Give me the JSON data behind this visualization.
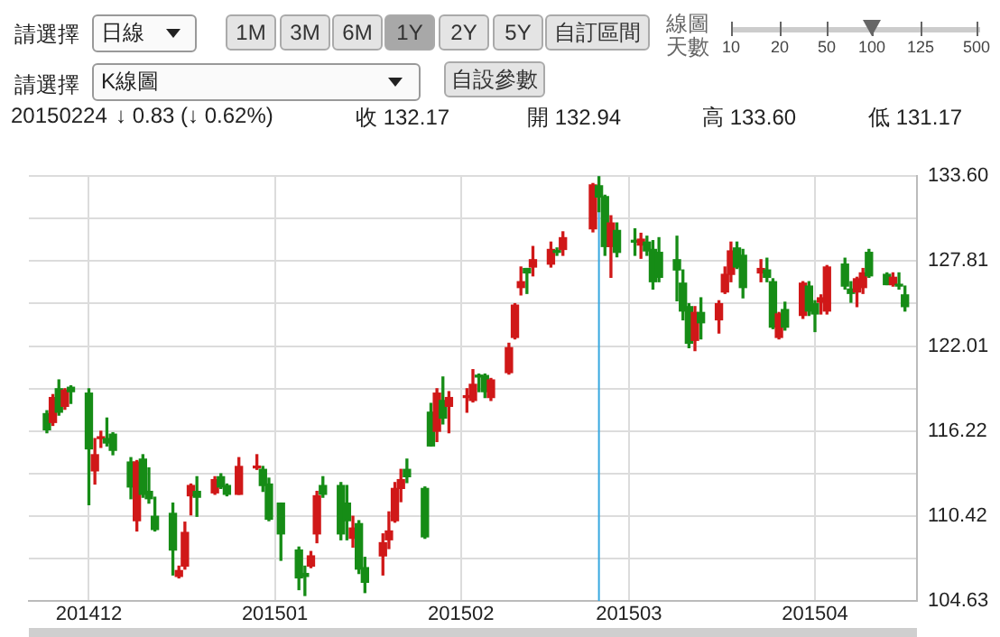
{
  "chart_data": {
    "type": "candlestick",
    "annotations": [
      "請選擇",
      "日線",
      "1M",
      "3M",
      "6M",
      "1Y",
      "2Y",
      "5Y",
      "自訂區間",
      "線圖天數",
      "10",
      "20",
      "50",
      "100",
      "125",
      "500",
      "請選擇",
      "K線圖",
      "自設參數",
      "20150224",
      "↓ 0.83 (↓ 0.62%)",
      "收 132.17",
      "開 132.94",
      "高 133.60",
      "低 131.17"
    ],
    "x": [
      "2014-11-24",
      "2014-11-25",
      "2014-11-26",
      "2014-11-27",
      "2014-11-28",
      "2014-12-01",
      "2014-12-02",
      "2014-12-03",
      "2014-12-04",
      "2014-12-05",
      "2014-12-08",
      "2014-12-09",
      "2014-12-10",
      "2014-12-11",
      "2014-12-12",
      "2014-12-15",
      "2014-12-16",
      "2014-12-17",
      "2014-12-18",
      "2014-12-19",
      "2014-12-22",
      "2014-12-23",
      "2014-12-24",
      "2014-12-26",
      "2014-12-29",
      "2014-12-30",
      "2014-12-31",
      "2015-01-02",
      "2015-01-05",
      "2015-01-06",
      "2015-01-07",
      "2015-01-08",
      "2015-01-09",
      "2015-01-12",
      "2015-01-13",
      "2015-01-14",
      "2015-01-15",
      "2015-01-16",
      "2015-01-19",
      "2015-01-20",
      "2015-01-21",
      "2015-01-22",
      "2015-01-23",
      "2015-01-26",
      "2015-01-27",
      "2015-01-28",
      "2015-01-29",
      "2015-01-30",
      "2015-02-02",
      "2015-02-03",
      "2015-02-04",
      "2015-02-05",
      "2015-02-06",
      "2015-02-09",
      "2015-02-10",
      "2015-02-11",
      "2015-02-12",
      "2015-02-13",
      "2015-02-16",
      "2015-02-17",
      "2015-02-18",
      "2015-02-23",
      "2015-02-24",
      "2015-02-25",
      "2015-02-26",
      "2015-02-27",
      "2015-03-02",
      "2015-03-03",
      "2015-03-04",
      "2015-03-05",
      "2015-03-06",
      "2015-03-09",
      "2015-03-10",
      "2015-03-11",
      "2015-03-12",
      "2015-03-13",
      "2015-03-16",
      "2015-03-17",
      "2015-03-18",
      "2015-03-19",
      "2015-03-20",
      "2015-03-23",
      "2015-03-24",
      "2015-03-25",
      "2015-03-26",
      "2015-03-27",
      "2015-03-30",
      "2015-03-31",
      "2015-04-01",
      "2015-04-02",
      "2015-04-03",
      "2015-04-06",
      "2015-04-07",
      "2015-04-08",
      "2015-04-09",
      "2015-04-10",
      "2015-04-13",
      "2015-04-14",
      "2015-04-15",
      "2015-04-16"
    ],
    "ohlc": [
      [
        117.4,
        117.6,
        116.1,
        116.3
      ],
      [
        116.8,
        118.7,
        116.6,
        118.5
      ],
      [
        119.1,
        119.7,
        117.3,
        117.5
      ],
      [
        117.9,
        119.1,
        117.7,
        119.0
      ],
      [
        119.2,
        119.3,
        118.1,
        118.9
      ],
      [
        118.8,
        119.1,
        111.2,
        115.0
      ],
      [
        113.5,
        115.7,
        112.6,
        114.6
      ],
      [
        115.7,
        116.2,
        115.1,
        115.8
      ],
      [
        115.7,
        117.1,
        115.2,
        115.4
      ],
      [
        116.0,
        116.1,
        114.6,
        114.9
      ],
      [
        114.1,
        114.4,
        111.6,
        112.4
      ],
      [
        110.1,
        114.2,
        109.4,
        114.1
      ],
      [
        114.3,
        114.6,
        111.7,
        111.9
      ],
      [
        112.1,
        113.7,
        111.3,
        111.6
      ],
      [
        110.4,
        111.7,
        109.4,
        109.5
      ],
      [
        110.6,
        111.3,
        106.4,
        108.1
      ],
      [
        106.3,
        107.0,
        106.2,
        106.7
      ],
      [
        107.0,
        110.0,
        106.8,
        109.3
      ],
      [
        111.8,
        112.6,
        110.5,
        112.5
      ],
      [
        112.1,
        113.1,
        110.4,
        111.7
      ],
      [
        112.0,
        113.1,
        111.9,
        112.9
      ],
      [
        113.1,
        113.3,
        112.3,
        112.4
      ],
      [
        112.5,
        112.6,
        111.8,
        111.9
      ],
      [
        111.9,
        114.4,
        111.9,
        113.8
      ],
      [
        113.7,
        114.6,
        113.6,
        113.8
      ],
      [
        113.6,
        113.8,
        112.1,
        112.5
      ],
      [
        112.6,
        113.0,
        110.1,
        110.2
      ],
      [
        111.3,
        111.3,
        107.4,
        109.2
      ],
      [
        108.1,
        108.3,
        105.4,
        106.2
      ],
      [
        106.5,
        107.0,
        105.0,
        106.3
      ],
      [
        107.0,
        108.0,
        106.9,
        107.7
      ],
      [
        109.2,
        112.1,
        108.6,
        111.8
      ],
      [
        112.5,
        113.1,
        111.7,
        111.9
      ],
      [
        112.5,
        112.7,
        108.8,
        109.2
      ],
      [
        111.3,
        112.5,
        108.8,
        110.1
      ],
      [
        108.9,
        110.4,
        108.3,
        109.6
      ],
      [
        109.9,
        110.1,
        106.5,
        106.8
      ],
      [
        106.9,
        107.6,
        105.2,
        105.9
      ],
      [
        107.7,
        109.2,
        106.4,
        108.6
      ],
      [
        108.8,
        110.7,
        108.2,
        109.4
      ],
      [
        110.1,
        112.7,
        110.0,
        112.3
      ],
      [
        112.3,
        113.6,
        111.4,
        112.9
      ],
      [
        113.6,
        114.3,
        112.7,
        113.1
      ],
      [
        112.3,
        112.4,
        108.9,
        109.0
      ],
      [
        117.5,
        118.1,
        115.2,
        115.2
      ],
      [
        116.2,
        119.1,
        115.5,
        118.8
      ],
      [
        118.3,
        119.9,
        116.7,
        117.1
      ],
      [
        117.9,
        118.9,
        116.1,
        118.5
      ],
      [
        118.5,
        119.1,
        117.5,
        118.6
      ],
      [
        118.3,
        120.4,
        118.2,
        119.4
      ],
      [
        120.0,
        120.1,
        118.9,
        119.9
      ],
      [
        120.0,
        120.1,
        118.5,
        118.9
      ],
      [
        118.5,
        119.8,
        118.3,
        119.7
      ],
      [
        120.2,
        122.2,
        120.1,
        121.9
      ],
      [
        122.6,
        124.9,
        122.5,
        124.8
      ],
      [
        126.0,
        127.4,
        125.5,
        126.4
      ],
      [
        127.3,
        127.3,
        125.6,
        127.0
      ],
      [
        127.4,
        128.8,
        126.8,
        127.9
      ],
      [
        127.6,
        129.1,
        127.4,
        128.6
      ],
      [
        128.5,
        128.7,
        128.2,
        128.4
      ],
      [
        128.6,
        129.8,
        128.2,
        129.4
      ],
      [
        130.0,
        133.1,
        129.8,
        133.0
      ],
      [
        132.94,
        133.6,
        131.17,
        132.17
      ],
      [
        132.2,
        132.3,
        128.2,
        128.8
      ],
      [
        128.8,
        130.9,
        126.7,
        130.4
      ],
      [
        129.9,
        130.4,
        128.1,
        128.4
      ],
      [
        129.2,
        130.0,
        128.2,
        129.1
      ],
      [
        128.9,
        129.7,
        128.0,
        129.3
      ],
      [
        129.1,
        129.5,
        128.2,
        128.5
      ],
      [
        128.6,
        129.2,
        125.9,
        126.4
      ],
      [
        128.4,
        129.4,
        126.4,
        126.7
      ],
      [
        127.9,
        129.5,
        125.1,
        127.2
      ],
      [
        126.3,
        127.2,
        123.8,
        124.4
      ],
      [
        124.7,
        124.9,
        121.9,
        122.2
      ],
      [
        122.4,
        124.7,
        121.7,
        124.3
      ],
      [
        124.3,
        125.3,
        122.5,
        123.6
      ],
      [
        123.8,
        125.1,
        122.9,
        124.9
      ],
      [
        125.7,
        127.4,
        125.6,
        126.9
      ],
      [
        126.9,
        129.1,
        126.4,
        128.5
      ],
      [
        128.7,
        129.1,
        127.3,
        127.4
      ],
      [
        128.2,
        128.6,
        125.3,
        126.0
      ],
      [
        127.0,
        127.9,
        126.4,
        127.3
      ],
      [
        127.2,
        128.0,
        126.4,
        126.7
      ],
      [
        126.4,
        126.6,
        123.2,
        123.3
      ],
      [
        122.6,
        124.3,
        122.5,
        124.2
      ],
      [
        124.5,
        125.0,
        123.1,
        123.3
      ],
      [
        124.1,
        126.4,
        123.9,
        126.3
      ],
      [
        126.1,
        126.4,
        124.1,
        124.4
      ],
      [
        124.9,
        125.1,
        123.0,
        124.2
      ],
      [
        125.0,
        125.5,
        124.2,
        125.3
      ],
      [
        124.4,
        127.5,
        124.2,
        127.4
      ],
      [
        127.6,
        128.0,
        125.9,
        126.1
      ],
      [
        125.9,
        126.4,
        125.0,
        125.6
      ],
      [
        125.7,
        126.7,
        124.7,
        126.6
      ],
      [
        126.0,
        127.3,
        125.6,
        127.0
      ],
      [
        128.4,
        128.6,
        126.7,
        126.8
      ],
      [
        126.9,
        127.0,
        126.2,
        126.2
      ],
      [
        126.2,
        127.0,
        126.1,
        126.7
      ],
      [
        126.2,
        127.0,
        125.9,
        126.1
      ],
      [
        125.5,
        126.1,
        124.4,
        124.7
      ]
    ],
    "xlim": [
      "2014-11-21",
      "2015-04-18"
    ],
    "xticks": [
      {
        "value": "2014-12-01",
        "label": "201412"
      },
      {
        "value": "2015-01-01",
        "label": "201501"
      },
      {
        "value": "2015-02-01",
        "label": "201502"
      },
      {
        "value": "2015-03-01",
        "label": "201503"
      },
      {
        "value": "2015-04-01",
        "label": "201504"
      }
    ],
    "ylim": [
      104.63,
      133.6
    ],
    "yticks": [
      104.63,
      {
        "value": 107.525,
        "label": null
      },
      110.42,
      {
        "value": 113.32,
        "label": null
      },
      116.22,
      {
        "value": 119.115,
        "label": null
      },
      122.01,
      {
        "value": 124.91,
        "label": null
      },
      127.81,
      {
        "value": 130.705,
        "label": null
      },
      {
        "value": 133.6,
        "label": "133.60"
      }
    ],
    "ref_lines": [
      {
        "axis": "x",
        "value": "2015-02-24",
        "color": "#38a8e0"
      }
    ],
    "grid": true,
    "legend": false
  }
}
